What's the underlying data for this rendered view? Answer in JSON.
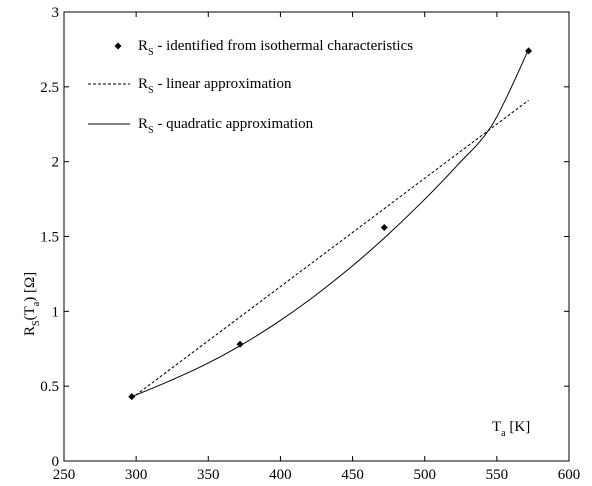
{
  "chart_data": {
    "type": "scatter",
    "xlim": [
      250,
      600
    ],
    "ylim": [
      0,
      3
    ],
    "xticks": [
      "250",
      "300",
      "350",
      "400",
      "450",
      "500",
      "550",
      "600"
    ],
    "yticks": [
      "0",
      "0.5",
      "1",
      "1.5",
      "2",
      "2.5",
      "3"
    ],
    "xlabel": {
      "main": "T",
      "sub": "a",
      "unit": " [K]"
    },
    "ylabel": {
      "main": "R",
      "sub1": "S",
      "mid": "(T",
      "sub2": "a",
      "unit": ") [Ω]"
    },
    "grid": false,
    "legend_position": "top-left",
    "series": [
      {
        "name": {
          "main": "R",
          "sub": "S",
          "rest": " - identified from isothermal characteristics"
        },
        "style": "markers",
        "x": [
          297,
          372,
          472,
          572
        ],
        "y": [
          0.43,
          0.78,
          1.56,
          2.74
        ]
      },
      {
        "name": {
          "main": "R",
          "sub": "S",
          "rest": " - linear approximation"
        },
        "style": "dashed",
        "x": [
          297,
          572
        ],
        "y": [
          0.42,
          2.41
        ]
      },
      {
        "name": {
          "main": "R",
          "sub": "S",
          "rest": " - quadratic approximation"
        },
        "style": "solid",
        "x": [
          297,
          322,
          347,
          372,
          397,
          422,
          447,
          472,
          497,
          522,
          547,
          572
        ],
        "y": [
          0.43,
          0.53,
          0.64,
          0.77,
          0.92,
          1.09,
          1.28,
          1.49,
          1.72,
          1.97,
          2.25,
          2.75
        ]
      }
    ]
  }
}
